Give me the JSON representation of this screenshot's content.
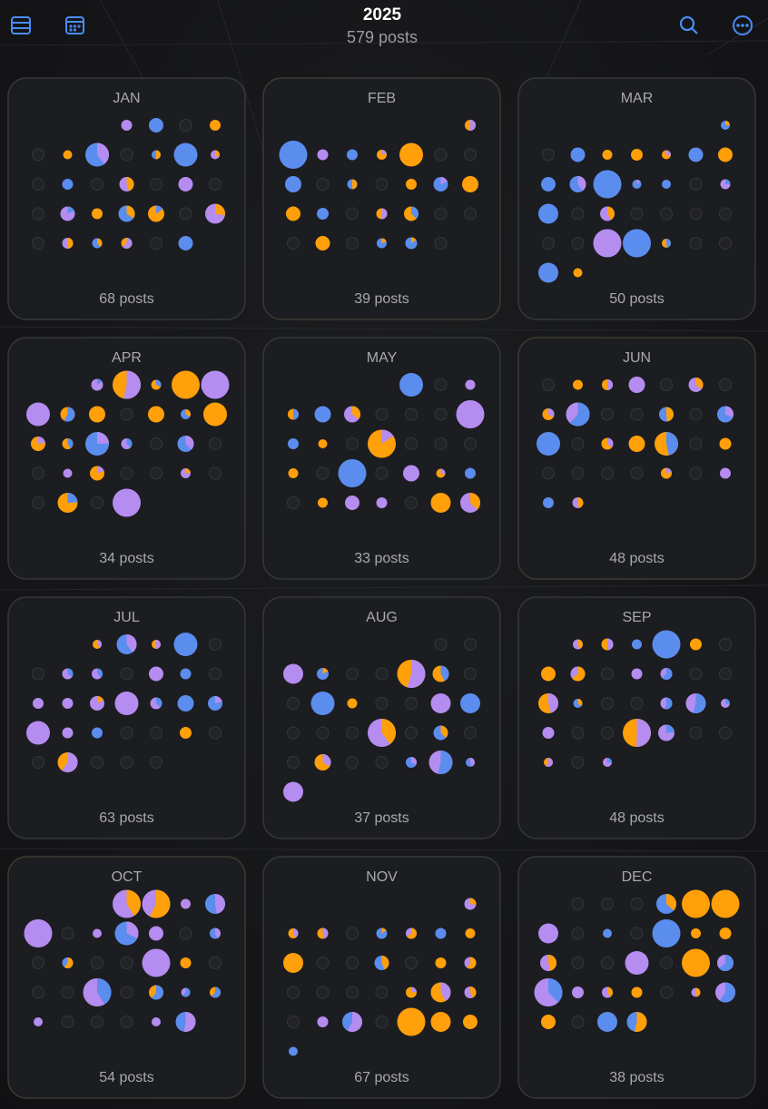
{
  "header": {
    "year": "2025",
    "subtitle": "579 posts"
  },
  "months": [
    {
      "name": "JAN",
      "posts": "68 posts"
    },
    {
      "name": "FEB",
      "posts": "39 posts"
    },
    {
      "name": "MAR",
      "posts": "50 posts"
    },
    {
      "name": "APR",
      "posts": "34 posts"
    },
    {
      "name": "MAY",
      "posts": "33 posts"
    },
    {
      "name": "JUN",
      "posts": "48 posts"
    },
    {
      "name": "JUL",
      "posts": "63 posts"
    },
    {
      "name": "AUG",
      "posts": "37 posts"
    },
    {
      "name": "SEP",
      "posts": "48 posts"
    },
    {
      "name": "OCT",
      "posts": "54 posts"
    },
    {
      "name": "NOV",
      "posts": "67 posts"
    },
    {
      "name": "DEC",
      "posts": "38 posts"
    }
  ]
}
